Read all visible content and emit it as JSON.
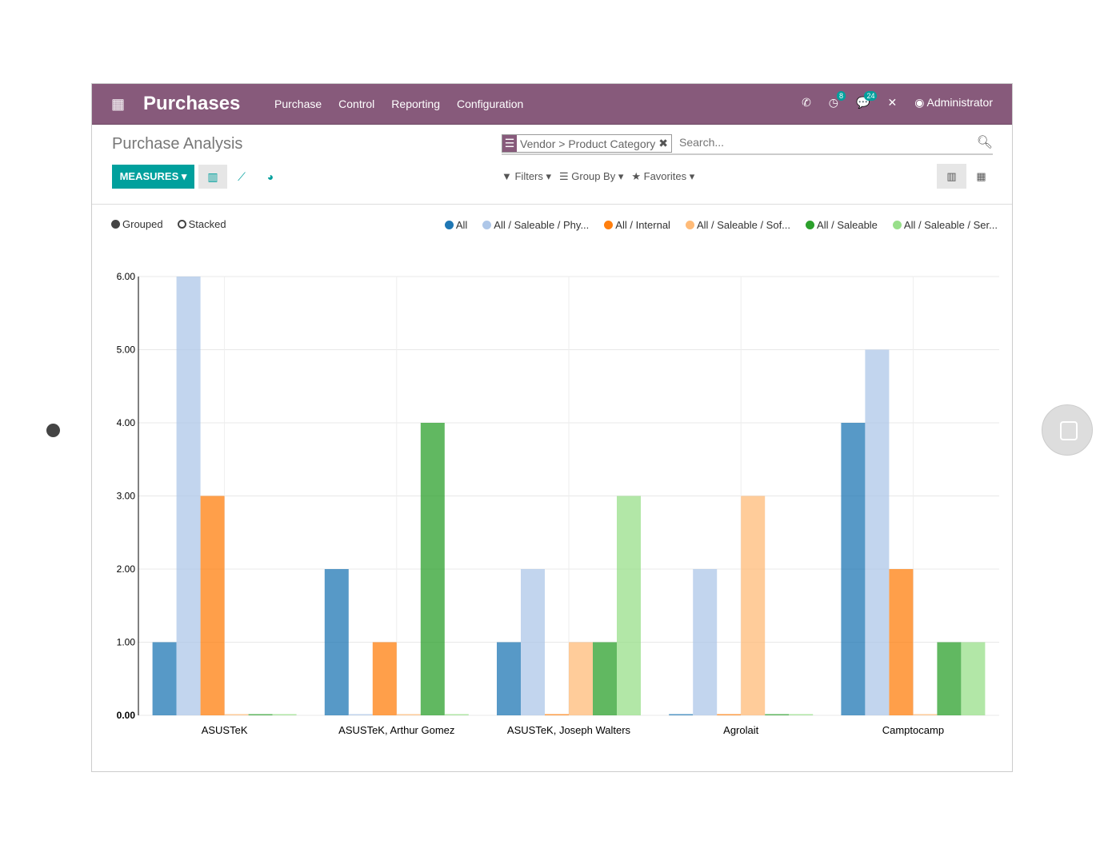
{
  "nav": {
    "brand": "Purchases",
    "menu": [
      "Purchase",
      "Control",
      "Reporting",
      "Configuration"
    ],
    "activity_count": "8",
    "message_count": "24",
    "user": "Administrator"
  },
  "page": {
    "title": "Purchase Analysis",
    "measures": "MEASURES ▾",
    "facet": "Vendor > Product Category",
    "search_placeholder": "Search...",
    "filters": "Filters ▾",
    "group_by": "Group By ▾",
    "favorites": "Favorites ▾",
    "grouped": "Grouped",
    "stacked": "Stacked"
  },
  "chart_data": {
    "type": "bar",
    "mode": "grouped",
    "categories": [
      "ASUSTeK",
      "ASUSTeK, Arthur Gomez",
      "ASUSTeK, Joseph Walters",
      "Agrolait",
      "Camptocamp"
    ],
    "series": [
      {
        "name": "All",
        "color": "#1f77b4",
        "values": [
          1,
          2,
          1,
          0,
          4
        ]
      },
      {
        "name": "All / Saleable / Phy...",
        "color": "#aec7e8",
        "values": [
          6,
          0,
          2,
          2,
          5
        ]
      },
      {
        "name": "All / Internal",
        "color": "#ff7f0e",
        "values": [
          3,
          1,
          0,
          0,
          2
        ]
      },
      {
        "name": "All / Saleable / Sof...",
        "color": "#ffbb78",
        "values": [
          0,
          0,
          1,
          3,
          0
        ]
      },
      {
        "name": "All / Saleable",
        "color": "#2ca02c",
        "values": [
          0,
          4,
          1,
          0,
          1
        ]
      },
      {
        "name": "All / Saleable / Ser...",
        "color": "#98df8a",
        "values": [
          0,
          0,
          3,
          0,
          1
        ]
      }
    ],
    "yticks": [
      "0.00",
      "1.00",
      "2.00",
      "3.00",
      "4.00",
      "5.00",
      "6.00"
    ],
    "ylim": [
      0,
      6
    ],
    "grid": true,
    "legend": "top-right"
  }
}
